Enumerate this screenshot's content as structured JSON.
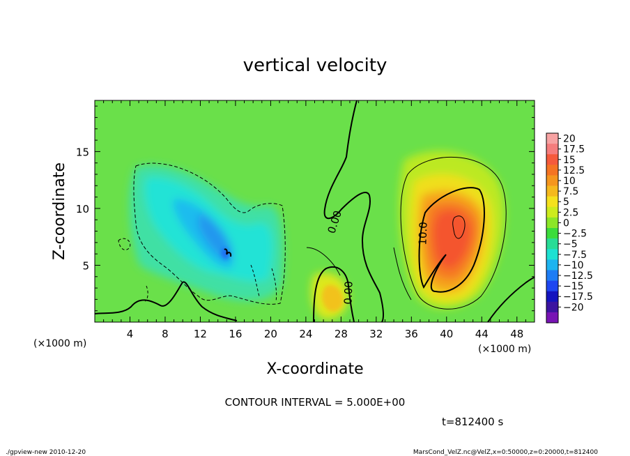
{
  "chart_data": {
    "type": "heatmap",
    "title": "vertical velocity",
    "xlabel": "X-coordinate",
    "ylabel": "Z-coordinate",
    "x_unit": "(×1000 m)",
    "y_unit": "(×1000 m)",
    "xlim": [
      0,
      50
    ],
    "ylim": [
      0,
      19.5
    ],
    "x_ticks": [
      4,
      8,
      12,
      16,
      20,
      24,
      28,
      32,
      36,
      40,
      44,
      48
    ],
    "y_ticks": [
      5,
      10,
      15
    ],
    "colorbar_labels": [
      "20",
      "17.5",
      "15",
      "12.5",
      "10",
      "7.5",
      "5",
      "2.5",
      "0",
      "−2.5",
      "−5",
      "−7.5",
      "−10",
      "−12.5",
      "−15",
      "−17.5",
      "−20"
    ],
    "colorbar_colors": [
      "#f7a3a3",
      "#f57d7d",
      "#f55a3c",
      "#f57423",
      "#f5961e",
      "#f5b91e",
      "#f5e11e",
      "#cdeb1e",
      "#8ce628",
      "#3cdc3c",
      "#28dc96",
      "#1ee1d2",
      "#1eb4f0",
      "#1e7df5",
      "#1e46f0",
      "#1414be",
      "#3c14a0",
      "#7814b4"
    ],
    "contour_interval": "CONTOUR INTERVAL = 5.000E+00",
    "contour_labels": [
      "0.00",
      "0.00",
      "10.0"
    ],
    "time_label": "t=812400 s",
    "grid": false
  },
  "footer": {
    "left": "./gpview-new  2010-12-20",
    "right": "MarsCond_VelZ.nc@VelZ,x=0:50000,z=0:20000,t=812400"
  }
}
